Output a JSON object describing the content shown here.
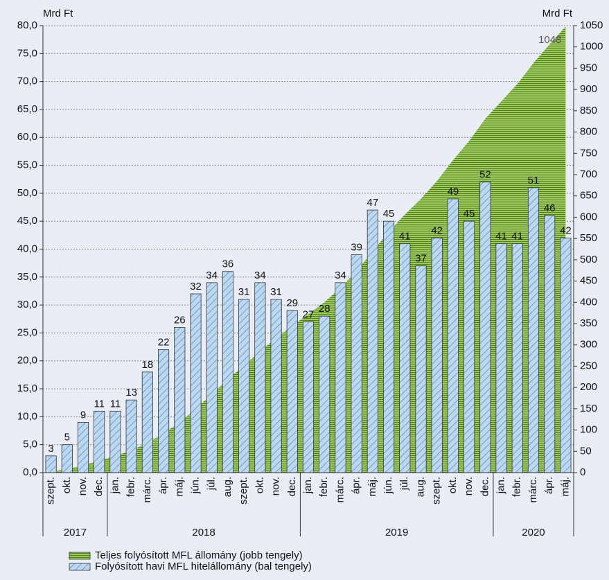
{
  "chart_data": {
    "type": "combo",
    "y_label": "Mrd Ft",
    "y2_label": "Mrd Ft",
    "category_groups": [
      {
        "label": "2017",
        "categories": [
          "szept.",
          "okt.",
          "nov.",
          "dec."
        ]
      },
      {
        "label": "2018",
        "categories": [
          "jan.",
          "febr.",
          "márc.",
          "ápr.",
          "máj.",
          "jún.",
          "júl.",
          "aug.",
          "szept.",
          "okt.",
          "nov.",
          "dec."
        ]
      },
      {
        "label": "2019",
        "categories": [
          "jan.",
          "febr.",
          "márc.",
          "ápr.",
          "máj.",
          "jún.",
          "júl.",
          "aug.",
          "szept.",
          "okt.",
          "nov.",
          "dec."
        ]
      },
      {
        "label": "2020",
        "categories": [
          "jan.",
          "febr.",
          "márc.",
          "ápr.",
          "máj."
        ]
      }
    ],
    "series": [
      {
        "name": "Teljes folyósított MFL állomány (jobb tengely)",
        "type": "area",
        "axis": "y2",
        "color": "#9dc85a",
        "values": [
          3,
          8,
          17,
          28,
          39,
          52,
          70,
          92,
          118,
          150,
          184,
          220,
          251,
          285,
          316,
          345,
          372,
          400,
          434,
          473,
          520,
          565,
          606,
          643,
          685,
          734,
          779,
          831,
          872,
          913,
          962,
          1006,
          1048
        ]
      },
      {
        "name": "Folyósított havi MFL hitelállomány (bal tengely)",
        "type": "bar",
        "axis": "y",
        "color": "#bcd7ee",
        "values": [
          3,
          5,
          9,
          11,
          11,
          13,
          18,
          22,
          26,
          32,
          34,
          36,
          31,
          34,
          31,
          29,
          27,
          28,
          34,
          39,
          47,
          45,
          41,
          37,
          42,
          49,
          45,
          52,
          41,
          41,
          51,
          46,
          42
        ]
      }
    ],
    "annotation": "1048",
    "ylim": [
      0,
      80
    ],
    "yticks": [
      {
        "value": 0,
        "label": "0,0"
      },
      {
        "value": 5,
        "label": "5,0"
      },
      {
        "value": 10,
        "label": "10,0"
      },
      {
        "value": 15,
        "label": "15,0"
      },
      {
        "value": 20,
        "label": "20,0"
      },
      {
        "value": 25,
        "label": "25,0"
      },
      {
        "value": 30,
        "label": "30,0"
      },
      {
        "value": 35,
        "label": "35,0"
      },
      {
        "value": 40,
        "label": "40,0"
      },
      {
        "value": 45,
        "label": "45,0"
      },
      {
        "value": 50,
        "label": "50,0"
      },
      {
        "value": 55,
        "label": "55,0"
      },
      {
        "value": 60,
        "label": "60,0"
      },
      {
        "value": 65,
        "label": "65,0"
      },
      {
        "value": 70,
        "label": "70,0"
      },
      {
        "value": 75,
        "label": "75,0"
      },
      {
        "value": 80,
        "label": "80,0"
      }
    ],
    "y2lim": [
      0,
      1050
    ],
    "y2ticks": [
      0,
      50,
      100,
      150,
      200,
      250,
      300,
      350,
      400,
      450,
      500,
      550,
      600,
      650,
      700,
      750,
      800,
      850,
      900,
      950,
      1000,
      1050
    ],
    "grid": true
  }
}
